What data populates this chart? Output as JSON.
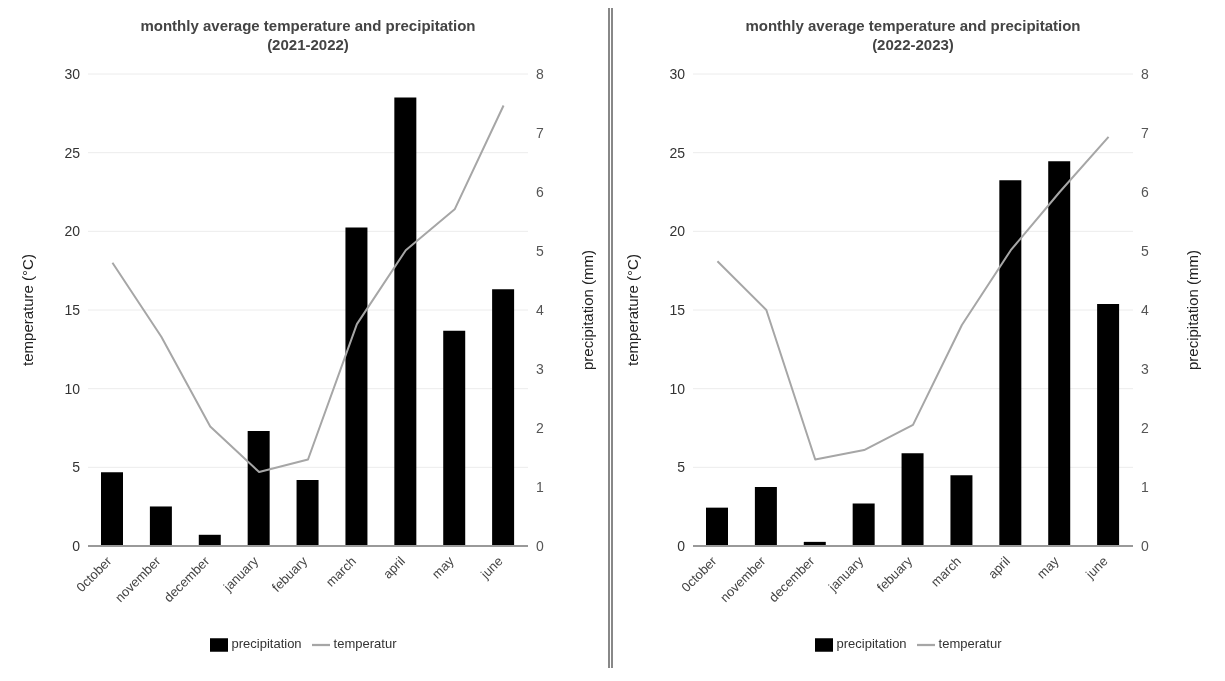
{
  "chart_data": [
    {
      "type": "bar",
      "title": "monthly average temperature and precipitation (2021-2022)",
      "ylabel": "temperature (°C)",
      "y2label": "precipitation (mm)",
      "categories": [
        "0ctober",
        "november",
        "december",
        "january",
        "febuary",
        "march",
        "april",
        "may",
        "june"
      ],
      "series": [
        {
          "name": "precipitation",
          "axis": "y2",
          "color": "#000000",
          "values": [
            1.25,
            0.67,
            0.19,
            1.95,
            1.12,
            5.4,
            7.6,
            3.65,
            4.35
          ]
        },
        {
          "name": "temperatur",
          "type": "line",
          "color": "#a6a6a6",
          "values": [
            18.0,
            13.3,
            7.6,
            4.7,
            5.5,
            14.1,
            18.8,
            21.4,
            28.0
          ]
        }
      ],
      "ylim": [
        0,
        30
      ],
      "yticks": [
        0,
        5,
        10,
        15,
        20,
        25,
        30
      ],
      "y2lim": [
        0,
        8
      ],
      "y2ticks": [
        0,
        1,
        2,
        3,
        4,
        5,
        6,
        7,
        8
      ],
      "grid": "y",
      "legend": "bottom",
      "marker": "none"
    },
    {
      "type": "bar",
      "title": "monthly average temperature and precipitation (2022-2023)",
      "ylabel": "temperature (°C)",
      "y2label": "precipitation (mm)",
      "categories": [
        "0ctober",
        "november",
        "december",
        "january",
        "febuary",
        "march",
        "april",
        "may",
        "june"
      ],
      "series": [
        {
          "name": "precipitation",
          "axis": "y2",
          "color": "#000000",
          "values": [
            0.65,
            1.0,
            0.07,
            0.72,
            1.57,
            1.2,
            6.2,
            6.52,
            4.1
          ]
        },
        {
          "name": "temperatur",
          "type": "line",
          "color": "#a6a6a6",
          "values": [
            18.1,
            15.0,
            5.5,
            6.1,
            7.7,
            14.05,
            18.8,
            22.5,
            26.0
          ]
        }
      ],
      "ylim": [
        0,
        30
      ],
      "yticks": [
        0,
        5,
        10,
        15,
        20,
        25,
        30
      ],
      "y2lim": [
        0,
        8
      ],
      "y2ticks": [
        0,
        1,
        2,
        3,
        4,
        5,
        6,
        7,
        8
      ],
      "grid": "y",
      "legend": "bottom",
      "marker": "none"
    }
  ]
}
